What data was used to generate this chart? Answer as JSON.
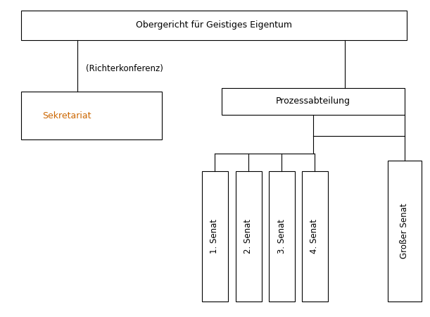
{
  "title": "Obergericht für Geistiges Eigentum",
  "richterkonferenz_label": "(Richterkonferenz)",
  "sekretariat_label": "Sekretariat",
  "sekretariat_color": "#cc6600",
  "prozess_label": "Prozessabteilung",
  "senate_labels": [
    "1. Senat",
    "2. Senat",
    "3. Senat",
    "4. Senat",
    "Großer Senat"
  ],
  "bg_color": "#ffffff",
  "box_edge_color": "#000000",
  "text_color": "#000000",
  "font_size": 9,
  "font_size_small": 8.5
}
